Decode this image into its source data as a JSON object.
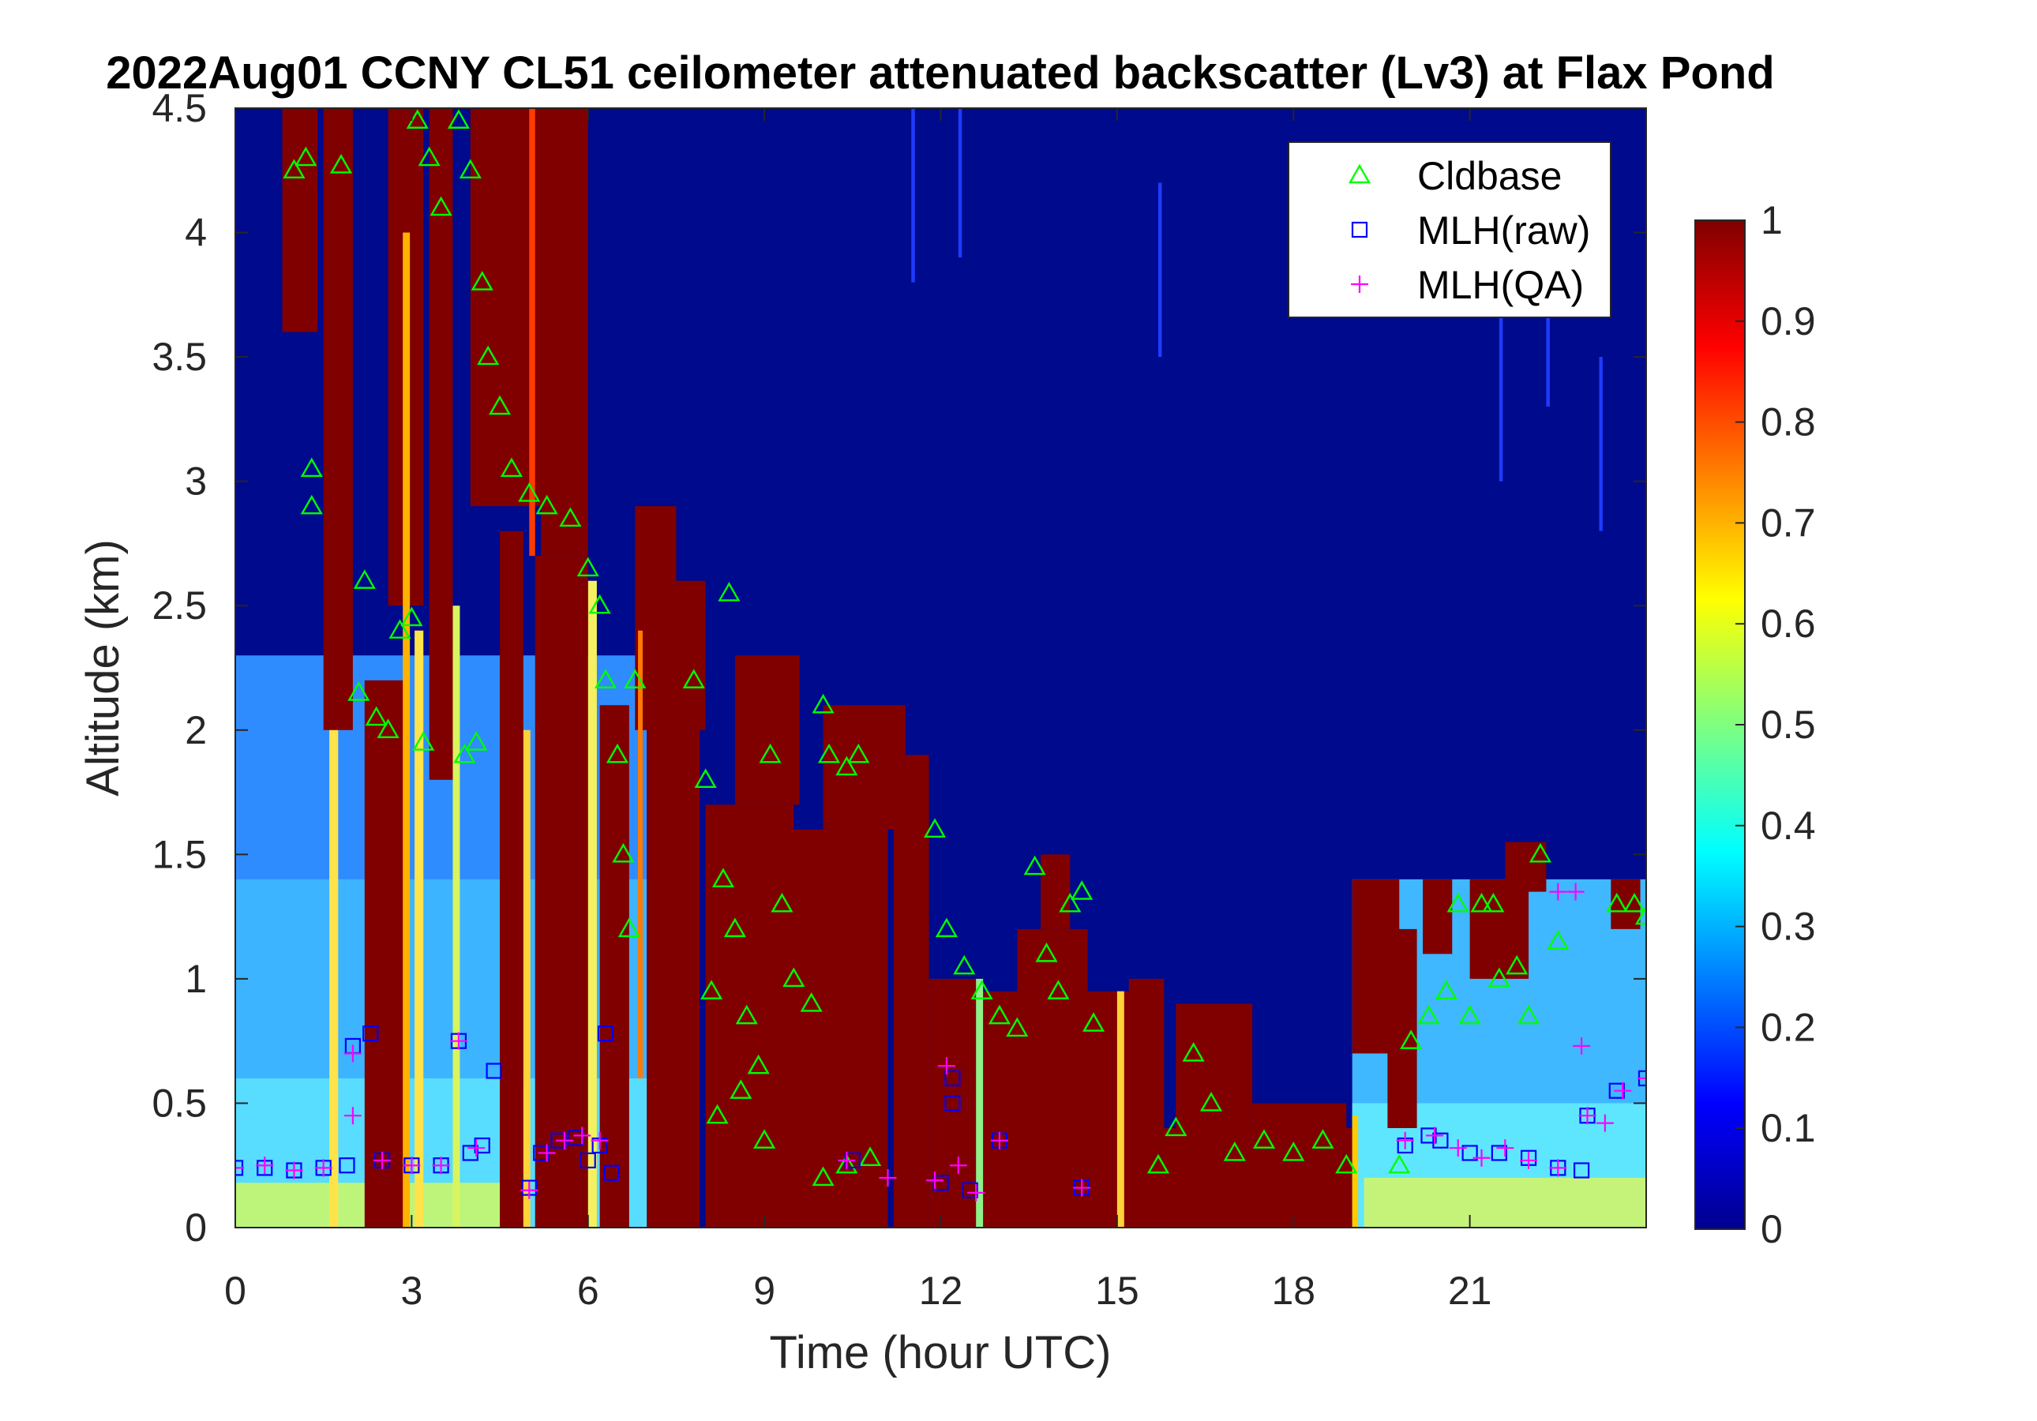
{
  "chart_data": {
    "type": "heatmap",
    "title": "2022Aug01 CCNY CL51 ceilometer attenuated backscatter (Lv3) at Flax Pond",
    "xlabel": "Time (hour UTC)",
    "ylabel": "Altitude (km)",
    "xlim": [
      0,
      24
    ],
    "ylim": [
      0,
      4.5
    ],
    "x_ticks": [
      0,
      3,
      6,
      9,
      12,
      15,
      18,
      21
    ],
    "x_tick_labels": [
      "0",
      "3",
      "6",
      "9",
      "12",
      "15",
      "18",
      "21"
    ],
    "y_ticks": [
      0,
      0.5,
      1,
      1.5,
      2,
      2.5,
      3,
      3.5,
      4,
      4.5
    ],
    "y_tick_labels": [
      "0",
      "0.5",
      "1",
      "1.5",
      "2",
      "2.5",
      "3",
      "3.5",
      "4",
      "4.5"
    ],
    "colorbar": {
      "colormap": "jet",
      "clim": [
        0,
        1
      ],
      "ticks": [
        0,
        0.1,
        0.2,
        0.3,
        0.4,
        0.5,
        0.6,
        0.7,
        0.8,
        0.9,
        1
      ],
      "tick_labels": [
        "0",
        "0.1",
        "0.2",
        "0.3",
        "0.4",
        "0.5",
        "0.6",
        "0.7",
        "0.8",
        "0.9",
        "1"
      ]
    },
    "legend": {
      "placement": "top-right",
      "entries": [
        {
          "label": "Cldbase",
          "marker": "triangle",
          "color": "#00ff00"
        },
        {
          "label": "MLH(raw)",
          "marker": "square",
          "color": "#0000ff"
        },
        {
          "label": "MLH(QA)",
          "marker": "plus",
          "color": "#ff00ff"
        }
      ]
    },
    "series": [
      {
        "name": "Cldbase",
        "marker": "triangle",
        "color": "#00ff00",
        "points": [
          [
            1.0,
            4.25
          ],
          [
            1.2,
            4.3
          ],
          [
            1.8,
            4.27
          ],
          [
            1.3,
            3.05
          ],
          [
            1.3,
            2.9
          ],
          [
            2.2,
            2.6
          ],
          [
            2.1,
            2.15
          ],
          [
            2.4,
            2.05
          ],
          [
            2.6,
            2.0
          ],
          [
            2.8,
            2.4
          ],
          [
            3.0,
            2.45
          ],
          [
            3.2,
            1.95
          ],
          [
            3.1,
            4.45
          ],
          [
            3.3,
            4.3
          ],
          [
            3.5,
            4.1
          ],
          [
            3.8,
            4.45
          ],
          [
            4.0,
            4.25
          ],
          [
            3.9,
            1.9
          ],
          [
            4.1,
            1.95
          ],
          [
            4.2,
            3.8
          ],
          [
            4.3,
            3.5
          ],
          [
            4.5,
            3.3
          ],
          [
            4.7,
            3.05
          ],
          [
            5.0,
            2.95
          ],
          [
            5.3,
            2.9
          ],
          [
            5.7,
            2.85
          ],
          [
            6.0,
            2.65
          ],
          [
            6.2,
            2.5
          ],
          [
            6.3,
            2.2
          ],
          [
            6.5,
            1.9
          ],
          [
            6.6,
            1.5
          ],
          [
            6.8,
            2.2
          ],
          [
            6.7,
            1.2
          ],
          [
            7.8,
            2.2
          ],
          [
            8.0,
            1.8
          ],
          [
            8.3,
            1.4
          ],
          [
            8.1,
            0.95
          ],
          [
            8.4,
            2.55
          ],
          [
            8.5,
            1.2
          ],
          [
            8.7,
            0.85
          ],
          [
            8.2,
            0.45
          ],
          [
            8.6,
            0.55
          ],
          [
            8.9,
            0.65
          ],
          [
            9.0,
            0.35
          ],
          [
            9.1,
            1.9
          ],
          [
            9.3,
            1.3
          ],
          [
            9.5,
            1.0
          ],
          [
            9.8,
            0.9
          ],
          [
            10.0,
            2.1
          ],
          [
            10.1,
            1.9
          ],
          [
            10.4,
            1.85
          ],
          [
            10.6,
            1.9
          ],
          [
            10.0,
            0.2
          ],
          [
            10.4,
            0.25
          ],
          [
            10.8,
            0.28
          ],
          [
            11.9,
            1.6
          ],
          [
            12.1,
            1.2
          ],
          [
            12.4,
            1.05
          ],
          [
            12.7,
            0.95
          ],
          [
            13.0,
            0.85
          ],
          [
            13.3,
            0.8
          ],
          [
            13.6,
            1.45
          ],
          [
            13.8,
            1.1
          ],
          [
            14.0,
            0.95
          ],
          [
            14.2,
            1.3
          ],
          [
            14.4,
            1.35
          ],
          [
            14.6,
            0.82
          ],
          [
            15.7,
            0.25
          ],
          [
            16.0,
            0.4
          ],
          [
            16.3,
            0.7
          ],
          [
            16.6,
            0.5
          ],
          [
            17.0,
            0.3
          ],
          [
            17.5,
            0.35
          ],
          [
            18.0,
            0.3
          ],
          [
            18.5,
            0.35
          ],
          [
            18.9,
            0.25
          ],
          [
            19.8,
            0.25
          ],
          [
            20.0,
            0.75
          ],
          [
            20.3,
            0.85
          ],
          [
            20.6,
            0.95
          ],
          [
            21.0,
            0.85
          ],
          [
            20.8,
            1.3
          ],
          [
            21.2,
            1.3
          ],
          [
            21.4,
            1.3
          ],
          [
            21.5,
            1.0
          ],
          [
            21.8,
            1.05
          ],
          [
            22.2,
            1.5
          ],
          [
            22.0,
            0.85
          ],
          [
            22.5,
            1.15
          ],
          [
            23.5,
            1.3
          ],
          [
            23.8,
            1.3
          ],
          [
            24.0,
            1.25
          ]
        ]
      },
      {
        "name": "MLH(raw)",
        "marker": "square",
        "color": "#0000ff",
        "points": [
          [
            0.0,
            0.24
          ],
          [
            0.5,
            0.24
          ],
          [
            1.0,
            0.23
          ],
          [
            1.5,
            0.24
          ],
          [
            1.9,
            0.25
          ],
          [
            2.0,
            0.73
          ],
          [
            2.3,
            0.78
          ],
          [
            2.5,
            0.27
          ],
          [
            3.0,
            0.25
          ],
          [
            3.5,
            0.25
          ],
          [
            3.8,
            0.75
          ],
          [
            4.0,
            0.3
          ],
          [
            4.2,
            0.33
          ],
          [
            4.4,
            0.63
          ],
          [
            5.0,
            0.16
          ],
          [
            5.2,
            0.3
          ],
          [
            5.5,
            0.35
          ],
          [
            5.8,
            0.36
          ],
          [
            6.0,
            0.27
          ],
          [
            6.2,
            0.33
          ],
          [
            6.3,
            0.78
          ],
          [
            6.4,
            0.22
          ],
          [
            10.5,
            0.27
          ],
          [
            12.0,
            0.18
          ],
          [
            12.2,
            0.6
          ],
          [
            12.2,
            0.5
          ],
          [
            12.5,
            0.15
          ],
          [
            13.0,
            0.35
          ],
          [
            14.4,
            0.16
          ],
          [
            19.9,
            0.33
          ],
          [
            20.3,
            0.37
          ],
          [
            20.5,
            0.35
          ],
          [
            21.0,
            0.3
          ],
          [
            21.5,
            0.3
          ],
          [
            22.0,
            0.28
          ],
          [
            22.5,
            0.24
          ],
          [
            22.9,
            0.23
          ],
          [
            23.0,
            0.45
          ],
          [
            23.5,
            0.55
          ],
          [
            24.0,
            0.6
          ]
        ]
      },
      {
        "name": "MLH(QA)",
        "marker": "plus",
        "color": "#ff00ff",
        "points": [
          [
            0.0,
            0.24
          ],
          [
            0.5,
            0.25
          ],
          [
            1.0,
            0.23
          ],
          [
            1.5,
            0.24
          ],
          [
            2.0,
            0.45
          ],
          [
            2.0,
            0.7
          ],
          [
            2.5,
            0.27
          ],
          [
            3.0,
            0.25
          ],
          [
            3.5,
            0.25
          ],
          [
            3.8,
            0.75
          ],
          [
            4.1,
            0.32
          ],
          [
            5.0,
            0.15
          ],
          [
            5.3,
            0.3
          ],
          [
            5.6,
            0.35
          ],
          [
            5.9,
            0.37
          ],
          [
            6.2,
            0.35
          ],
          [
            10.4,
            0.27
          ],
          [
            11.1,
            0.2
          ],
          [
            11.9,
            0.19
          ],
          [
            12.1,
            0.65
          ],
          [
            12.3,
            0.25
          ],
          [
            12.6,
            0.14
          ],
          [
            13.0,
            0.35
          ],
          [
            14.4,
            0.16
          ],
          [
            19.9,
            0.35
          ],
          [
            20.4,
            0.37
          ],
          [
            20.8,
            0.32
          ],
          [
            21.2,
            0.28
          ],
          [
            21.6,
            0.32
          ],
          [
            22.0,
            0.27
          ],
          [
            22.5,
            0.24
          ],
          [
            22.5,
            1.35
          ],
          [
            22.8,
            1.35
          ],
          [
            22.9,
            0.73
          ],
          [
            23.0,
            0.45
          ],
          [
            23.3,
            0.42
          ],
          [
            23.6,
            0.55
          ],
          [
            24.0,
            0.6
          ]
        ]
      }
    ]
  }
}
